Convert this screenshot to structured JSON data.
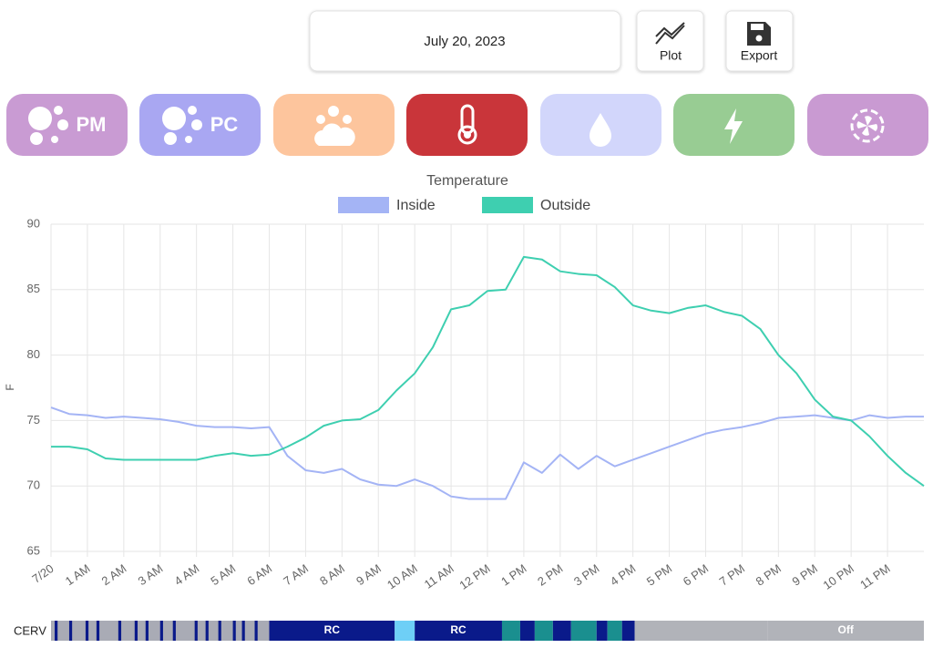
{
  "header": {
    "date": "July 20, 2023",
    "buttons": [
      {
        "label": "Plot"
      },
      {
        "label": "Export"
      }
    ]
  },
  "tiles": [
    {
      "label": "PM",
      "color": "#c99bd3"
    },
    {
      "label": "PC",
      "color": "#a9a7f2"
    },
    {
      "color": "#fdc59d"
    },
    {
      "color": "#c9353a"
    },
    {
      "color": "#d2d6fb"
    },
    {
      "color": "#98cc93"
    },
    {
      "color": "#c99ad2"
    }
  ],
  "chart_data": {
    "type": "line",
    "title": "Temperature",
    "ylabel": "F",
    "x": [
      0,
      0.5,
      1,
      1.5,
      2,
      2.5,
      3,
      3.5,
      4,
      4.5,
      5,
      5.5,
      6,
      6.5,
      7,
      7.5,
      8,
      8.5,
      9,
      9.5,
      10,
      10.5,
      11,
      11.5,
      12,
      12.5,
      13,
      13.5,
      14,
      14.5,
      15,
      15.5,
      16,
      16.5,
      17,
      17.5,
      18,
      18.5,
      19,
      19.5,
      20,
      20.5,
      21,
      21.5,
      22,
      22.5,
      23,
      23.5,
      24
    ],
    "series": [
      {
        "name": "Inside",
        "color": "#a4b4f5",
        "values": [
          76,
          75.5,
          75.4,
          75.2,
          75.3,
          75.2,
          75.1,
          74.9,
          74.6,
          74.5,
          74.5,
          74.4,
          74.5,
          72.3,
          71.2,
          71,
          71.3,
          70.5,
          70.1,
          70,
          70.5,
          70,
          69.2,
          69,
          69,
          69,
          71.8,
          71,
          72.4,
          71.3,
          72.3,
          71.5,
          72,
          72.5,
          73,
          73.5,
          74,
          74.3,
          74.5,
          74.8,
          75.2,
          75.3,
          75.4,
          75.2,
          75,
          75.4,
          75.2,
          75.3,
          75.3
        ]
      },
      {
        "name": "Outside",
        "color": "#3ecfb0",
        "values": [
          73,
          73,
          72.8,
          72.1,
          72,
          72,
          72,
          72,
          72,
          72.3,
          72.5,
          72.3,
          72.4,
          73,
          73.7,
          74.6,
          75,
          75.1,
          75.8,
          77.3,
          78.6,
          80.6,
          83.5,
          83.8,
          84.9,
          85,
          87.5,
          87.3,
          86.4,
          86.2,
          86.1,
          85.2,
          83.8,
          83.4,
          83.2,
          83.6,
          83.8,
          83.3,
          83,
          82,
          80,
          78.6,
          76.6,
          75.3,
          75,
          73.8,
          72.3,
          71,
          70
        ]
      }
    ],
    "xlim": [
      0,
      24
    ],
    "xticks": [
      {
        "value": 0,
        "label": "7/20"
      },
      {
        "value": 1,
        "label": "1 AM"
      },
      {
        "value": 2,
        "label": "2 AM"
      },
      {
        "value": 3,
        "label": "3 AM"
      },
      {
        "value": 4,
        "label": "4 AM"
      },
      {
        "value": 5,
        "label": "5 AM"
      },
      {
        "value": 6,
        "label": "6 AM"
      },
      {
        "value": 7,
        "label": "7 AM"
      },
      {
        "value": 8,
        "label": "8 AM"
      },
      {
        "value": 9,
        "label": "9 AM"
      },
      {
        "value": 10,
        "label": "10 AM"
      },
      {
        "value": 11,
        "label": "11 AM"
      },
      {
        "value": 12,
        "label": "12 PM"
      },
      {
        "value": 13,
        "label": "1 PM"
      },
      {
        "value": 14,
        "label": "2 PM"
      },
      {
        "value": 15,
        "label": "3 PM"
      },
      {
        "value": 16,
        "label": "4 PM"
      },
      {
        "value": 17,
        "label": "5 PM"
      },
      {
        "value": 18,
        "label": "6 PM"
      },
      {
        "value": 19,
        "label": "7 PM"
      },
      {
        "value": 20,
        "label": "8 PM"
      },
      {
        "value": 21,
        "label": "9 PM"
      },
      {
        "value": 22,
        "label": "10 PM"
      },
      {
        "value": 23,
        "label": "11 PM"
      }
    ],
    "ylim": [
      65,
      90
    ],
    "yticks": [
      65,
      70,
      75,
      80,
      85,
      90
    ],
    "grid": true,
    "legend": "top"
  },
  "cerv": {
    "label": "CERV",
    "segments": [
      {
        "start": 0,
        "end": 6,
        "color": "#a9abb5"
      },
      {
        "start": 0.1,
        "end": 0.18,
        "color": "#0a1a8a"
      },
      {
        "start": 0.5,
        "end": 0.58,
        "color": "#0a1a8a"
      },
      {
        "start": 0.95,
        "end": 1.03,
        "color": "#0a1a8a"
      },
      {
        "start": 1.25,
        "end": 1.33,
        "color": "#0a1a8a"
      },
      {
        "start": 1.85,
        "end": 1.93,
        "color": "#0a1a8a"
      },
      {
        "start": 2.3,
        "end": 2.38,
        "color": "#0a1a8a"
      },
      {
        "start": 2.6,
        "end": 2.68,
        "color": "#0a1a8a"
      },
      {
        "start": 3.0,
        "end": 3.08,
        "color": "#0a1a8a"
      },
      {
        "start": 3.35,
        "end": 3.43,
        "color": "#0a1a8a"
      },
      {
        "start": 3.95,
        "end": 4.03,
        "color": "#0a1a8a"
      },
      {
        "start": 4.25,
        "end": 4.33,
        "color": "#0a1a8a"
      },
      {
        "start": 4.6,
        "end": 4.68,
        "color": "#0a1a8a"
      },
      {
        "start": 5.0,
        "end": 5.08,
        "color": "#0a1a8a"
      },
      {
        "start": 5.25,
        "end": 5.33,
        "color": "#0a1a8a"
      },
      {
        "start": 5.6,
        "end": 5.68,
        "color": "#0a1a8a"
      },
      {
        "start": 6,
        "end": 9.45,
        "color": "#0a1a8a",
        "label": "RC"
      },
      {
        "start": 9.45,
        "end": 10,
        "color": "#6ecff6"
      },
      {
        "start": 10,
        "end": 12.4,
        "color": "#0a1a8a",
        "label": "RC"
      },
      {
        "start": 12.4,
        "end": 12.9,
        "color": "#1a8f8f"
      },
      {
        "start": 12.9,
        "end": 13.3,
        "color": "#0a1a8a"
      },
      {
        "start": 13.3,
        "end": 13.8,
        "color": "#1a8f8f"
      },
      {
        "start": 13.8,
        "end": 14.3,
        "color": "#0a1a8a"
      },
      {
        "start": 14.3,
        "end": 15,
        "color": "#1a8f8f"
      },
      {
        "start": 15,
        "end": 15.3,
        "color": "#0a1a8a"
      },
      {
        "start": 15.3,
        "end": 15.7,
        "color": "#1a8f8f"
      },
      {
        "start": 15.7,
        "end": 16.05,
        "color": "#0a1a8a"
      },
      {
        "start": 16.05,
        "end": 19.7,
        "color": "#b1b3b9"
      },
      {
        "start": 19.7,
        "end": 24,
        "color": "#b1b3b9",
        "label": "Off"
      }
    ]
  }
}
